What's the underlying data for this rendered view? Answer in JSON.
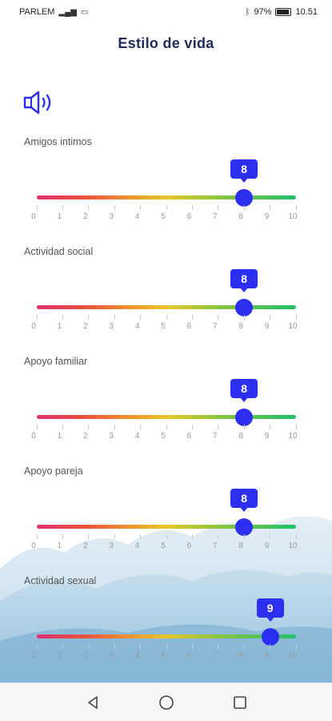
{
  "status_bar": {
    "carrier": "PARLEM",
    "battery_percent": "97%",
    "time": "10.51"
  },
  "header": {
    "title": "Estilo de vida"
  },
  "speaker_icon": "volume-icon",
  "scale": {
    "min": 0,
    "max": 10,
    "tick_labels": [
      "0",
      "1",
      "2",
      "3",
      "4",
      "5",
      "6",
      "7",
      "8",
      "9",
      "10"
    ]
  },
  "sliders": [
    {
      "label": "Amigos intimos",
      "value": 8
    },
    {
      "label": "Actividad social",
      "value": 8
    },
    {
      "label": "Apoyo familiar",
      "value": 8
    },
    {
      "label": "Apoyo pareja",
      "value": 8
    },
    {
      "label": "Actividad sexual",
      "value": 9
    }
  ],
  "colors": {
    "accent": "#2c2ff0",
    "title": "#1f2a5a",
    "track_start": "#e0306e",
    "track_mid": "#e8c72a",
    "track_end": "#1fbf6a"
  },
  "nav": {
    "back_icon": "back-triangle-icon",
    "home_icon": "home-circle-icon",
    "recents_icon": "recents-square-icon"
  }
}
